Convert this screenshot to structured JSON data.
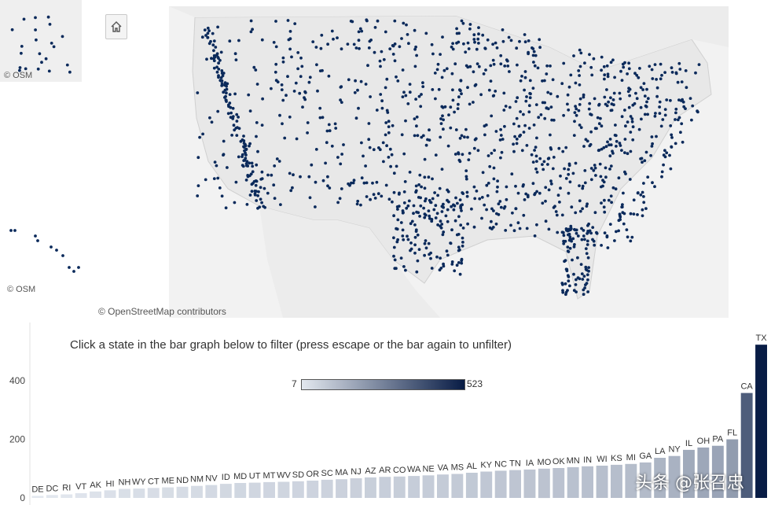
{
  "map": {
    "attribution": "© OpenStreetMap contributors",
    "osm_alaska": "© OSM",
    "osm_hawaii": "© OSM",
    "dot_color": "#0b2a5b",
    "land_color": "#e8e8e8",
    "water_color": "#ffffff"
  },
  "instruction": "Click a state in the bar graph below to filter (press escape or the bar again to unfilter)",
  "legend": {
    "min_label": "7",
    "max_label": "523",
    "color_low": "#e3e8ef",
    "color_high": "#081c45"
  },
  "watermark": "头条 @张召忠",
  "chart_data": {
    "type": "bar",
    "categories": [
      "DE",
      "DC",
      "RI",
      "VT",
      "AK",
      "HI",
      "NH",
      "WY",
      "CT",
      "ME",
      "ND",
      "NM",
      "NV",
      "ID",
      "MD",
      "UT",
      "MT",
      "WV",
      "SD",
      "OR",
      "SC",
      "MA",
      "NJ",
      "AZ",
      "AR",
      "CO",
      "WA",
      "NE",
      "VA",
      "MS",
      "AL",
      "KY",
      "NC",
      "TN",
      "IA",
      "MO",
      "OK",
      "MN",
      "IN",
      "WI",
      "KS",
      "MI",
      "GA",
      "LA",
      "NY",
      "IL",
      "OH",
      "PA",
      "FL",
      "CA",
      "TX"
    ],
    "values": [
      7,
      10,
      12,
      16,
      22,
      26,
      31,
      32,
      34,
      36,
      38,
      41,
      44,
      48,
      51,
      52,
      54,
      55,
      57,
      59,
      62,
      64,
      67,
      70,
      72,
      73,
      75,
      77,
      80,
      82,
      86,
      90,
      93,
      95,
      97,
      100,
      102,
      105,
      108,
      110,
      113,
      116,
      121,
      137,
      143,
      164,
      172,
      178,
      200,
      358,
      523
    ],
    "yticks": [
      0,
      200,
      400
    ],
    "ylim": [
      0,
      523
    ],
    "xlabel": "",
    "ylabel": "",
    "title": ""
  }
}
